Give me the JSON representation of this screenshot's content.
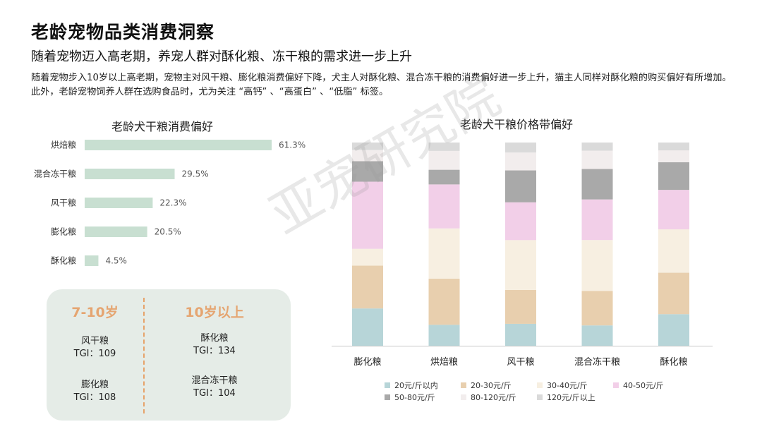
{
  "header": {
    "title": "老龄宠物品类消费洞察",
    "subtitle": "随着宠物迈入高老期，养宠人群对酥化粮、冻干粮的需求进一步上升",
    "description": "随着宠物步入10岁以上高老期，宠物主对风干粮、膨化粮消费偏好下降，犬主人对酥化粮、混合冻干粮的消费偏好进一步上升，猫主人同样对酥化粮的购买偏好有所增加。此外，老龄宠物饲养人群在选购食品时，尤为关注 “高钙” 、“高蛋白” 、“低脂” 标签。"
  },
  "watermark": "亚宠研究院",
  "tgi_panel": {
    "groups": [
      {
        "heading": "7-10岁",
        "items": [
          {
            "name": "风干粮",
            "tgi": "TGI：109"
          },
          {
            "name": "膨化粮",
            "tgi": "TGI：108"
          }
        ]
      },
      {
        "heading": "10岁以上",
        "items": [
          {
            "name": "酥化粮",
            "tgi": "TGI：134"
          },
          {
            "name": "混合冻干粮",
            "tgi": "TGI：104"
          }
        ]
      }
    ]
  },
  "chart_data": [
    {
      "type": "bar",
      "orientation": "horizontal",
      "title": "老龄犬干粮消费偏好",
      "categories": [
        "烘焙粮",
        "混合冻干粮",
        "风干粮",
        "膨化粮",
        "酥化粮"
      ],
      "values": [
        61.3,
        29.5,
        22.3,
        20.5,
        4.5
      ],
      "value_labels": [
        "61.3%",
        "29.5%",
        "22.3%",
        "20.5%",
        "4.5%"
      ],
      "color": "#c8dfd1"
    },
    {
      "type": "bar",
      "stacked": true,
      "percent_stacked": true,
      "title": "老龄犬干粮价格带偏好",
      "categories": [
        "膨化粮",
        "烘焙粮",
        "风干粮",
        "混合冻干粮",
        "酥化粮"
      ],
      "series": [
        {
          "name": "20元/斤以内",
          "color": "#b7d5d8",
          "values": [
            20,
            10,
            11,
            10,
            16
          ]
        },
        {
          "name": "20-30元/斤",
          "color": "#e8cfae",
          "values": [
            23,
            22,
            17,
            17,
            21
          ]
        },
        {
          "name": "30-40元/斤",
          "color": "#f7efe1",
          "values": [
            9,
            24,
            25,
            25,
            22
          ]
        },
        {
          "name": "40-50元/斤",
          "color": "#f2cfe8",
          "values": [
            36,
            21,
            19,
            20,
            20
          ]
        },
        {
          "name": "50-80元/斤",
          "color": "#a9a9a9",
          "values": [
            11,
            7,
            16,
            15,
            14
          ]
        },
        {
          "name": "80-120元/斤",
          "color": "#f2eded",
          "values": [
            6,
            9,
            9,
            9,
            6
          ]
        },
        {
          "name": "120元/斤以上",
          "color": "#dadada",
          "values": [
            4,
            4,
            5,
            4,
            4
          ]
        }
      ],
      "legend_position": "bottom"
    }
  ]
}
